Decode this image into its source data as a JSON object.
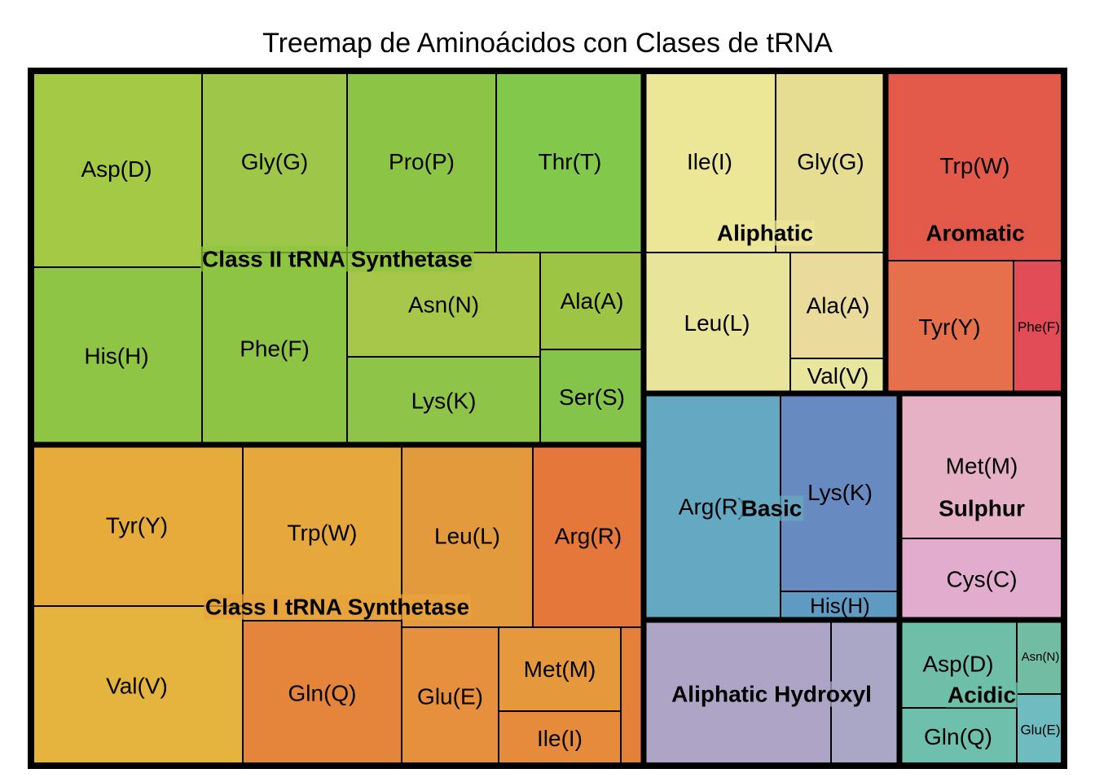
{
  "chart_data": {
    "type": "treemap",
    "title": "Treemap de Aminoácidos con Clases de tRNA",
    "groups": [
      {
        "name": "Class II tRNA Synthetase",
        "color": "#8dc63f",
        "leaves": [
          {
            "label": "Asp(D)",
            "color": "#a3c945"
          },
          {
            "label": "Gly(G)",
            "color": "#9ec74a"
          },
          {
            "label": "Pro(P)",
            "color": "#8cc446"
          },
          {
            "label": "Thr(T)",
            "color": "#82c84a"
          },
          {
            "label": "His(H)",
            "color": "#8fc544"
          },
          {
            "label": "Phe(F)",
            "color": "#8dc443"
          },
          {
            "label": "Asn(N)",
            "color": "#a7c74b"
          },
          {
            "label": "Ala(A)",
            "color": "#9dc444"
          },
          {
            "label": "Lys(K)",
            "color": "#8ec447"
          },
          {
            "label": "Ser(S)",
            "color": "#84c44b"
          }
        ]
      },
      {
        "name": "Class I tRNA Synthetase",
        "color": "#e8a33c",
        "leaves": [
          {
            "label": "Tyr(Y)",
            "color": "#e6ab3b"
          },
          {
            "label": "Trp(W)",
            "color": "#e6a83c"
          },
          {
            "label": "Leu(L)",
            "color": "#e39a3d"
          },
          {
            "label": "Arg(R)",
            "color": "#e5773b"
          },
          {
            "label": "Val(V)",
            "color": "#e4b43e"
          },
          {
            "label": "Gln(Q)",
            "color": "#e5843b"
          },
          {
            "label": "Glu(E)",
            "color": "#e68f3d"
          },
          {
            "label": "Met(M)",
            "color": "#e6983c"
          },
          {
            "label": "Ile(I)",
            "color": "#e58b3b"
          },
          {
            "label": "",
            "color": "#e5803b"
          }
        ]
      },
      {
        "name": "Aliphatic",
        "color": "#ece69a",
        "leaves": [
          {
            "label": "Ile(I)",
            "color": "#ece796"
          },
          {
            "label": "Gly(G)",
            "color": "#e6dd92"
          },
          {
            "label": "Leu(L)",
            "color": "#e8e59a"
          },
          {
            "label": "Ala(A)",
            "color": "#eadb9c"
          },
          {
            "label": "Val(V)",
            "color": "#e8e59d"
          }
        ]
      },
      {
        "name": "Aromatic",
        "color": "#e15a4b",
        "leaves": [
          {
            "label": "Trp(W)",
            "color": "#e35a4b"
          },
          {
            "label": "Tyr(Y)",
            "color": "#e5704b"
          },
          {
            "label": "Phe(F)",
            "color": "#e24c57"
          }
        ]
      },
      {
        "name": "Basic",
        "color": "#65a8c1",
        "leaves": [
          {
            "label": "Arg(R)",
            "color": "#65a8c1"
          },
          {
            "label": "Lys(K)",
            "color": "#678ac0"
          },
          {
            "label": "His(H)",
            "color": "#5f9ac2"
          }
        ]
      },
      {
        "name": "Sulphur",
        "color": "#e5b0c5",
        "leaves": [
          {
            "label": "Met(M)",
            "color": "#e6b0c5"
          },
          {
            "label": "Cys(C)",
            "color": "#e1accd"
          }
        ]
      },
      {
        "name": "Aliphatic Hydroxyl",
        "color": "#ada5c5",
        "leaves": [
          {
            "label": "",
            "color": "#aea5c6"
          },
          {
            "label": "",
            "color": "#a9a7c5"
          }
        ]
      },
      {
        "name": "Acidic",
        "color": "#6ebfa8",
        "leaves": [
          {
            "label": "Asp(D)",
            "color": "#6fbfa8"
          },
          {
            "label": "Asn(N)",
            "color": "#71bca3"
          },
          {
            "label": "Gln(Q)",
            "color": "#6ebfab"
          },
          {
            "label": "Glu(E)",
            "color": "#6fbcc0"
          }
        ]
      }
    ]
  }
}
